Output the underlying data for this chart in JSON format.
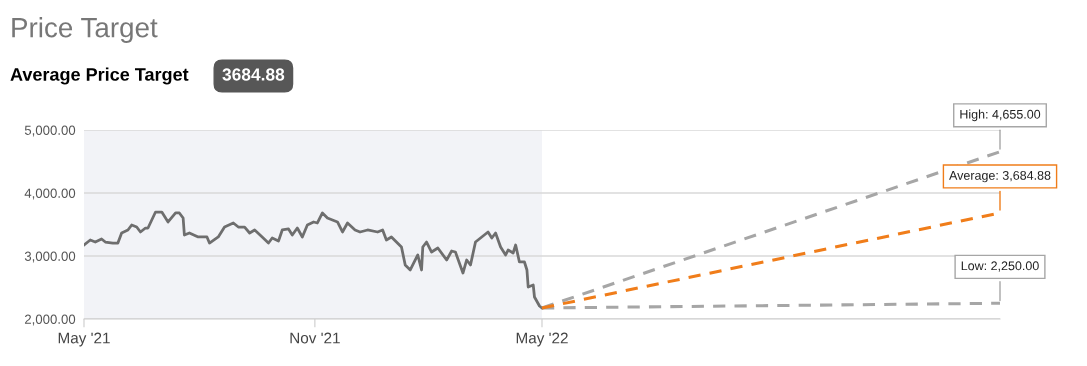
{
  "chart_data": {
    "type": "line",
    "title": "Price Target",
    "subtitle": "Average Price Target",
    "annotations": [
      "3684.88",
      {
        "text": "High: 4,655.00",
        "x": "2023-05-01",
        "y": 4655
      },
      {
        "text": "Average: 3,684.88",
        "x": "2023-05-01",
        "y": 3684.88
      },
      {
        "text": "Low: 2,250.00",
        "x": "2023-05-01",
        "y": 2250
      }
    ],
    "series": [
      {
        "color": "#6e6e6e",
        "line_style": "solid",
        "x": [
          "2021-05-01",
          "2021-05-06",
          "2021-05-10",
          "2021-05-15",
          "2021-05-18",
          "2021-05-24",
          "2021-05-28",
          "2021-05-31",
          "2021-06-05",
          "2021-06-08",
          "2021-06-12",
          "2021-06-15",
          "2021-06-19",
          "2021-06-21",
          "2021-06-27",
          "2021-07-02",
          "2021-07-07",
          "2021-07-13",
          "2021-07-16",
          "2021-07-19",
          "2021-07-20",
          "2021-07-24",
          "2021-07-31",
          "2021-08-07",
          "2021-08-09",
          "2021-08-16",
          "2021-08-21",
          "2021-08-28",
          "2021-09-01",
          "2021-09-06",
          "2021-09-10",
          "2021-09-14",
          "2021-09-20",
          "2021-09-25",
          "2021-09-28",
          "2021-10-03",
          "2021-10-06",
          "2021-10-11",
          "2021-10-14",
          "2021-10-18",
          "2021-10-22",
          "2021-10-26",
          "2021-10-31",
          "2021-11-03",
          "2021-11-07",
          "2021-11-11",
          "2021-11-19",
          "2021-11-23",
          "2021-11-27",
          "2021-12-03",
          "2021-12-07",
          "2021-12-13",
          "2021-12-21",
          "2021-12-25",
          "2021-12-28",
          "2022-01-01",
          "2022-01-05",
          "2022-01-09",
          "2022-01-12",
          "2022-01-16",
          "2022-01-22",
          "2022-01-25",
          "2022-01-26",
          "2022-01-29",
          "2022-02-02",
          "2022-02-07",
          "2022-02-14",
          "2022-02-18",
          "2022-02-21",
          "2022-02-27",
          "2022-03-02",
          "2022-03-05",
          "2022-03-09",
          "2022-03-14",
          "2022-03-19",
          "2022-03-22",
          "2022-03-25",
          "2022-03-29",
          "2022-04-02",
          "2022-04-04",
          "2022-04-08",
          "2022-04-10",
          "2022-04-13",
          "2022-04-17",
          "2022-04-19",
          "2022-04-20",
          "2022-04-24",
          "2022-04-25",
          "2022-04-29",
          "2022-05-01"
        ],
        "values": [
          3175,
          3254,
          3222,
          3270,
          3222,
          3206,
          3206,
          3365,
          3413,
          3492,
          3460,
          3381,
          3444,
          3444,
          3698,
          3698,
          3540,
          3683,
          3683,
          3603,
          3333,
          3365,
          3302,
          3302,
          3206,
          3302,
          3460,
          3524,
          3460,
          3460,
          3365,
          3413,
          3302,
          3206,
          3286,
          3238,
          3413,
          3429,
          3333,
          3444,
          3302,
          3492,
          3540,
          3524,
          3683,
          3603,
          3540,
          3381,
          3524,
          3413,
          3381,
          3413,
          3381,
          3413,
          3254,
          3302,
          3222,
          3143,
          2857,
          2778,
          3016,
          2778,
          3143,
          3222,
          3063,
          3127,
          2937,
          3079,
          3063,
          2730,
          2937,
          2857,
          3222,
          3302,
          3381,
          3286,
          3365,
          3143,
          3016,
          3095,
          3048,
          3175,
          2905,
          2905,
          2778,
          2508,
          2540,
          2349,
          2206,
          2175
        ]
      },
      {
        "color": "#a6a6a6",
        "line_style": "dashed",
        "x": [
          "2022-05-01",
          "2023-05-01"
        ],
        "values": [
          2175,
          4655
        ]
      },
      {
        "color": "#a6a6a6",
        "line_style": "dashed",
        "x": [
          "2022-05-01",
          "2023-05-01"
        ],
        "values": [
          2175,
          2250
        ]
      },
      {
        "color": "#f07d1a",
        "line_style": "dashed",
        "x": [
          "2022-05-01",
          "2023-05-01"
        ],
        "values": [
          2175,
          3684.88
        ]
      }
    ],
    "bands": [
      {
        "axis": "x",
        "from": "2021-05-01",
        "to": "2022-05-01",
        "color": "#f2f3f7"
      }
    ],
    "xlim": [
      "2021-05-01",
      "2023-05-01"
    ],
    "xticks": [
      {
        "value": "2021-05-01",
        "label": "May '21"
      },
      {
        "value": "2021-11-01",
        "label": "Nov '21"
      },
      {
        "value": "2022-05-01",
        "label": "May '22"
      }
    ],
    "ylim": [
      2000,
      5000
    ],
    "yticks": [
      {
        "value": 2000,
        "label": "2,000.00"
      },
      {
        "value": 3000,
        "label": "3,000.00"
      },
      {
        "value": 4000,
        "label": "4,000.00"
      },
      {
        "value": 5000,
        "label": "5,000.00"
      }
    ],
    "grid": "y",
    "legend": false,
    "marker": "none"
  }
}
